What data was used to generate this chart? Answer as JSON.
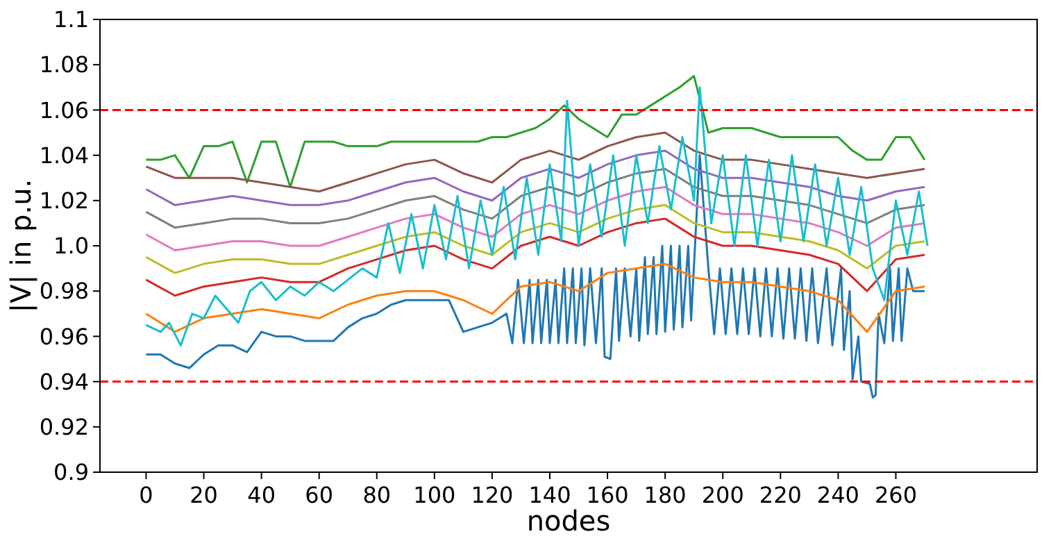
{
  "chart_data": {
    "type": "line",
    "xlabel": "nodes",
    "ylabel": "|V| in p.u.",
    "x": [
      0,
      10,
      20,
      30,
      40,
      50,
      60,
      70,
      80,
      90,
      100,
      110,
      120,
      130,
      140,
      150,
      160,
      170,
      180,
      190,
      200,
      210,
      220,
      230,
      240,
      250,
      260,
      270
    ],
    "xlim": [
      -16,
      309
    ],
    "xticks": [
      0,
      20,
      40,
      60,
      80,
      100,
      120,
      140,
      160,
      180,
      200,
      220,
      240,
      260
    ],
    "ylim": [
      0.9,
      1.1
    ],
    "yticks": [
      0.9,
      0.92,
      0.94,
      0.96,
      0.98,
      {
        "value": 1,
        "label": "1.0"
      },
      1.02,
      1.04,
      1.06,
      1.08,
      1.1
    ],
    "line_style": "solid",
    "marker": "none",
    "ref_lines": [
      {
        "axis": "y",
        "value": 1.06,
        "color": "#ff0000",
        "line_style": "dashed"
      },
      {
        "axis": "y",
        "value": 0.94,
        "color": "#ff0000",
        "line_style": "dashed"
      }
    ],
    "series": [
      {
        "color": "#1f77b4",
        "x": [
          0,
          5,
          10,
          15,
          20,
          25,
          30,
          35,
          40,
          45,
          50,
          55,
          60,
          65,
          70,
          75,
          80,
          85,
          90,
          95,
          100,
          105,
          110,
          115,
          120,
          125,
          127,
          129,
          131,
          133,
          134,
          136,
          137,
          139,
          140,
          142,
          143,
          145,
          146,
          148,
          149,
          151,
          152,
          154,
          156,
          158,
          159,
          161,
          163,
          164,
          166,
          168,
          170,
          171,
          173,
          174,
          176,
          177,
          179,
          180,
          182,
          183,
          185,
          186,
          188,
          189,
          192,
          195,
          197,
          199,
          201,
          203,
          205,
          207,
          209,
          211,
          213,
          215,
          217,
          219,
          221,
          223,
          225,
          227,
          229,
          231,
          233,
          236,
          238,
          241,
          242,
          244,
          245,
          247,
          248,
          251,
          252,
          253,
          254,
          256,
          258,
          259,
          261,
          262,
          264,
          266,
          270
        ],
        "values": [
          0.952,
          0.952,
          0.948,
          0.946,
          0.952,
          0.956,
          0.956,
          0.953,
          0.962,
          0.96,
          0.96,
          0.958,
          0.958,
          0.958,
          0.964,
          0.968,
          0.97,
          0.974,
          0.976,
          0.976,
          0.976,
          0.976,
          0.962,
          0.964,
          0.966,
          0.97,
          0.957,
          0.985,
          0.957,
          0.985,
          0.957,
          0.985,
          0.957,
          0.985,
          0.957,
          0.985,
          0.957,
          0.99,
          0.957,
          0.99,
          0.957,
          0.99,
          0.956,
          0.99,
          0.957,
          0.99,
          0.951,
          0.95,
          0.99,
          0.958,
          0.99,
          0.96,
          0.99,
          0.958,
          0.995,
          0.961,
          0.995,
          0.961,
          1.0,
          0.962,
          1.0,
          0.963,
          1.0,
          0.964,
          1.0,
          0.967,
          1.04,
          0.99,
          0.961,
          0.99,
          0.961,
          0.99,
          0.961,
          0.99,
          0.961,
          0.99,
          0.96,
          0.99,
          0.96,
          0.99,
          0.959,
          0.99,
          0.959,
          0.99,
          0.958,
          0.99,
          0.957,
          0.99,
          0.956,
          0.99,
          0.954,
          0.98,
          0.941,
          0.96,
          0.94,
          0.939,
          0.933,
          0.934,
          0.97,
          0.957,
          0.99,
          0.958,
          0.99,
          0.958,
          0.99,
          0.98,
          0.98
        ]
      },
      {
        "color": "#ff7f0e",
        "values": [
          0.97,
          0.962,
          0.968,
          0.97,
          0.972,
          0.97,
          0.968,
          0.974,
          0.978,
          0.98,
          0.98,
          0.976,
          0.97,
          0.982,
          0.984,
          0.98,
          0.988,
          0.99,
          0.992,
          0.986,
          0.984,
          0.984,
          0.982,
          0.98,
          0.976,
          0.962,
          0.98,
          0.982
        ]
      },
      {
        "color": "#2ca02c",
        "x": [
          0,
          5,
          10,
          15,
          20,
          25,
          30,
          35,
          40,
          45,
          50,
          55,
          60,
          65,
          70,
          75,
          80,
          85,
          90,
          95,
          100,
          105,
          110,
          115,
          120,
          125,
          130,
          135,
          140,
          145,
          150,
          155,
          160,
          165,
          170,
          175,
          180,
          185,
          190,
          195,
          200,
          205,
          210,
          215,
          220,
          225,
          230,
          235,
          240,
          245,
          250,
          255,
          260,
          265,
          270
        ],
        "values": [
          1.038,
          1.038,
          1.04,
          1.03,
          1.044,
          1.044,
          1.046,
          1.028,
          1.046,
          1.046,
          1.026,
          1.046,
          1.046,
          1.046,
          1.044,
          1.044,
          1.044,
          1.046,
          1.046,
          1.046,
          1.046,
          1.046,
          1.046,
          1.046,
          1.048,
          1.048,
          1.05,
          1.052,
          1.056,
          1.062,
          1.056,
          1.052,
          1.048,
          1.058,
          1.058,
          1.062,
          1.066,
          1.07,
          1.075,
          1.05,
          1.052,
          1.052,
          1.052,
          1.05,
          1.048,
          1.048,
          1.048,
          1.048,
          1.048,
          1.042,
          1.038,
          1.038,
          1.048,
          1.048,
          1.038
        ]
      },
      {
        "color": "#d62728",
        "values": [
          0.985,
          0.978,
          0.982,
          0.984,
          0.986,
          0.984,
          0.984,
          0.99,
          0.994,
          0.998,
          1.0,
          0.994,
          0.99,
          1.0,
          1.004,
          1.0,
          1.006,
          1.01,
          1.012,
          1.004,
          1.0,
          1.0,
          0.998,
          0.996,
          0.992,
          0.98,
          0.994,
          0.996
        ]
      },
      {
        "color": "#9467bd",
        "values": [
          1.025,
          1.018,
          1.02,
          1.022,
          1.02,
          1.018,
          1.018,
          1.02,
          1.024,
          1.028,
          1.03,
          1.024,
          1.02,
          1.03,
          1.034,
          1.03,
          1.036,
          1.04,
          1.042,
          1.034,
          1.03,
          1.03,
          1.028,
          1.026,
          1.022,
          1.02,
          1.024,
          1.026
        ]
      },
      {
        "color": "#8c564b",
        "values": [
          1.035,
          1.03,
          1.03,
          1.03,
          1.028,
          1.026,
          1.024,
          1.028,
          1.032,
          1.036,
          1.038,
          1.032,
          1.028,
          1.038,
          1.042,
          1.038,
          1.044,
          1.048,
          1.05,
          1.042,
          1.038,
          1.038,
          1.036,
          1.034,
          1.032,
          1.03,
          1.032,
          1.034
        ]
      },
      {
        "color": "#e377c2",
        "values": [
          1.005,
          0.998,
          1.0,
          1.002,
          1.002,
          1.0,
          1.0,
          1.004,
          1.008,
          1.012,
          1.014,
          1.008,
          1.004,
          1.014,
          1.018,
          1.014,
          1.02,
          1.024,
          1.026,
          1.018,
          1.014,
          1.014,
          1.012,
          1.01,
          1.006,
          1.0,
          1.008,
          1.01
        ]
      },
      {
        "color": "#7f7f7f",
        "values": [
          1.015,
          1.008,
          1.01,
          1.012,
          1.012,
          1.01,
          1.01,
          1.012,
          1.016,
          1.02,
          1.022,
          1.016,
          1.012,
          1.022,
          1.026,
          1.022,
          1.028,
          1.032,
          1.034,
          1.026,
          1.022,
          1.022,
          1.02,
          1.018,
          1.014,
          1.01,
          1.016,
          1.018
        ]
      },
      {
        "color": "#bcbd22",
        "values": [
          0.995,
          0.988,
          0.992,
          0.994,
          0.994,
          0.992,
          0.992,
          0.996,
          1.0,
          1.004,
          1.006,
          1.0,
          0.996,
          1.006,
          1.01,
          1.006,
          1.012,
          1.016,
          1.018,
          1.01,
          1.006,
          1.006,
          1.004,
          1.002,
          0.998,
          0.99,
          1.0,
          1.002
        ]
      },
      {
        "color": "#17becf",
        "x": [
          0,
          5,
          8,
          12,
          16,
          20,
          24,
          28,
          32,
          36,
          40,
          45,
          50,
          55,
          60,
          65,
          70,
          75,
          80,
          84,
          88,
          92,
          96,
          100,
          104,
          108,
          112,
          116,
          120,
          124,
          128,
          132,
          136,
          140,
          144,
          146,
          150,
          154,
          158,
          162,
          166,
          170,
          174,
          178,
          182,
          186,
          190,
          192,
          196,
          200,
          204,
          208,
          212,
          216,
          220,
          224,
          228,
          232,
          236,
          240,
          244,
          248,
          252,
          256,
          260,
          264,
          268,
          271
        ],
        "values": [
          0.965,
          0.962,
          0.966,
          0.956,
          0.97,
          0.968,
          0.978,
          0.972,
          0.966,
          0.98,
          0.984,
          0.976,
          0.982,
          0.978,
          0.984,
          0.98,
          0.985,
          0.99,
          0.986,
          1.01,
          0.988,
          1.014,
          0.99,
          1.018,
          0.994,
          1.022,
          0.99,
          1.02,
          0.996,
          1.026,
          0.994,
          1.03,
          0.996,
          1.036,
          1.002,
          1.064,
          1.0,
          1.036,
          1.004,
          1.04,
          1.0,
          1.04,
          1.01,
          1.044,
          1.016,
          1.048,
          1.02,
          1.07,
          1.01,
          1.04,
          1.0,
          1.04,
          1.0,
          1.038,
          1.002,
          1.04,
          1.002,
          1.036,
          1.0,
          1.03,
          0.996,
          1.026,
          0.99,
          0.976,
          1.02,
          0.996,
          1.024,
          1.0
        ]
      }
    ]
  }
}
